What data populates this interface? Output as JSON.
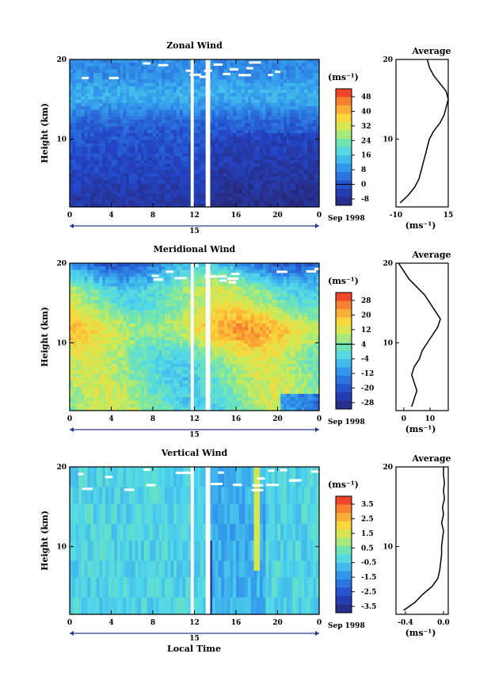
{
  "figure": {
    "x_axis_label": "Local Time",
    "date_label": "Sep 1998",
    "date_center_label": "15"
  },
  "chart_data": [
    {
      "type": "heatmap",
      "title": "Zonal Wind",
      "ylabel": "Height (km)",
      "unit_label": "(ms⁻¹)",
      "x_ticks": [
        "0",
        "4",
        "8",
        "12",
        "16",
        "20",
        "0"
      ],
      "y_ticks": [
        "20",
        "10"
      ],
      "ylim": [
        1.5,
        20
      ],
      "colorbar_ticks": [
        "48",
        "40",
        "32",
        "24",
        "16",
        "8",
        "0",
        "-8"
      ],
      "colorbar_range": [
        -8,
        48
      ],
      "colorbar_zero_line": "0",
      "profile": {
        "title": "Average",
        "x_ticks": [
          "-10",
          "15"
        ],
        "xlim": [
          -10,
          15
        ],
        "unit_label": "(ms⁻¹)",
        "y_ticks": [
          "20",
          "10"
        ],
        "heights": [
          2,
          3,
          4,
          5,
          6,
          7,
          8,
          9,
          10,
          11,
          12,
          13,
          14,
          15,
          16,
          17,
          18,
          19,
          20
        ],
        "values": [
          -8,
          -4,
          -1,
          1,
          2,
          3,
          4,
          5,
          6,
          8,
          11,
          13,
          14,
          15,
          14,
          11,
          8,
          6,
          5
        ]
      }
    },
    {
      "type": "heatmap",
      "title": "Meridional Wind",
      "ylabel": "Height (km)",
      "unit_label": "(ms⁻¹)",
      "x_ticks": [
        "0",
        "4",
        "8",
        "12",
        "16",
        "20",
        "0"
      ],
      "y_ticks": [
        "20",
        "10"
      ],
      "ylim": [
        1.5,
        20
      ],
      "colorbar_ticks": [
        "28",
        "20",
        "12",
        "4",
        "-4",
        "-12",
        "-20",
        "-28"
      ],
      "colorbar_range": [
        -28,
        28
      ],
      "colorbar_zero_line": "4",
      "profile": {
        "title": "Average",
        "x_ticks": [
          "0",
          "10"
        ],
        "xlim": [
          -3,
          17
        ],
        "unit_label": "(ms⁻¹)",
        "y_ticks": [
          "20",
          "10"
        ],
        "heights": [
          2,
          3,
          4,
          5,
          6,
          7,
          8,
          9,
          10,
          11,
          12,
          13,
          14,
          15,
          16,
          17,
          18,
          19,
          20
        ],
        "values": [
          3,
          4,
          5,
          4,
          3,
          4,
          6,
          7,
          9,
          11,
          13,
          14,
          12,
          10,
          8,
          5,
          2,
          0,
          -2
        ]
      }
    },
    {
      "type": "heatmap",
      "title": "Vertical Wind",
      "ylabel": "Height (km)",
      "unit_label": "(ms⁻¹)",
      "x_ticks": [
        "0",
        "4",
        "8",
        "12",
        "16",
        "20",
        "0"
      ],
      "y_ticks": [
        "20",
        "10"
      ],
      "ylim": [
        1.5,
        20
      ],
      "colorbar_ticks": [
        "3.5",
        "2.5",
        "1.5",
        "0.5",
        "-0.5",
        "-1.5",
        "-2.5",
        "-3.5"
      ],
      "colorbar_range": [
        -3.5,
        3.5
      ],
      "profile": {
        "title": "Average",
        "x_ticks": [
          "-0.4",
          "0.0"
        ],
        "xlim": [
          -0.5,
          0.05
        ],
        "unit_label": "(ms⁻¹)",
        "y_ticks": [
          "20",
          "10"
        ],
        "heights": [
          2,
          3,
          4,
          5,
          6,
          7,
          8,
          9,
          10,
          11,
          12,
          13,
          14,
          15,
          16,
          17,
          18,
          19,
          20
        ],
        "values": [
          -0.42,
          -0.3,
          -0.22,
          -0.12,
          -0.06,
          -0.04,
          -0.03,
          -0.02,
          -0.02,
          -0.01,
          0.0,
          -0.02,
          0.0,
          -0.01,
          0.01,
          0.0,
          0.01,
          0.0,
          0.0
        ]
      }
    }
  ]
}
